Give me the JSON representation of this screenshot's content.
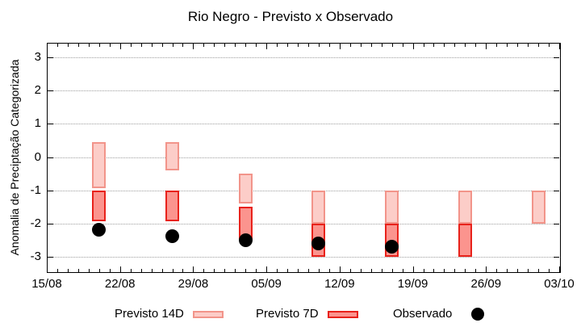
{
  "title": "Rio Negro - Previsto x Observado",
  "y_axis": {
    "label": "Anomalia de Preciptação Categorizada",
    "ticks": [
      3,
      2,
      1,
      0,
      -1,
      -2,
      -3
    ]
  },
  "x_axis": {
    "tick_labels": [
      "15/08",
      "22/08",
      "29/08",
      "05/09",
      "12/09",
      "19/09",
      "26/09",
      "03/10"
    ],
    "major_tick_every_days": 7,
    "minor_tick_every_days": 1,
    "total_days": 49
  },
  "legend": {
    "items": [
      {
        "label": "Previsto 14D",
        "swatch": "range-bar-light"
      },
      {
        "label": "Previsto 7D",
        "swatch": "range-bar-dark"
      },
      {
        "label": "Observado",
        "swatch": "black-dot"
      }
    ]
  },
  "colors": {
    "bar14_fill": "#fccdc8",
    "bar14_border": "#f2948a",
    "bar7_fill": "#fb948e",
    "bar7_border": "#e8221b",
    "observed": "#000000",
    "grid": "#9e9e9e",
    "frame": "#000000",
    "background": "#ffffff"
  },
  "chart_data": {
    "type": "bar",
    "subtype": "floating-range-bars-with-scatter",
    "title": "Rio Negro - Previsto x Observado",
    "xlabel": "",
    "ylabel": "Anomalia de Preciptação Categorizada",
    "ylim": [
      -3.45,
      3.45
    ],
    "x_range_labels": [
      "15/08",
      "03/10"
    ],
    "grid": "horizontal-dotted",
    "legend_position": "below",
    "categories": [
      "20/08",
      "27/08",
      "03/09",
      "10/09",
      "17/09",
      "24/09",
      "01/10"
    ],
    "category_day_offsets": [
      5,
      12,
      19,
      26,
      33,
      40,
      47
    ],
    "series": [
      {
        "name": "Previsto 14D",
        "style": "range-bar-light",
        "points": [
          {
            "date": "20/08",
            "day": 5,
            "low": -0.95,
            "high": 0.45
          },
          {
            "date": "27/08",
            "day": 12,
            "low": -0.4,
            "high": 0.45
          },
          {
            "date": "03/09",
            "day": 19,
            "low": -1.4,
            "high": -0.5
          },
          {
            "date": "10/09",
            "day": 26,
            "low": -2.0,
            "high": -1.0
          },
          {
            "date": "17/09",
            "day": 33,
            "low": -2.0,
            "high": -1.0
          },
          {
            "date": "24/09",
            "day": 40,
            "low": -2.0,
            "high": -1.0
          },
          {
            "date": "01/10",
            "day": 47,
            "low": -2.0,
            "high": -1.0
          }
        ]
      },
      {
        "name": "Previsto 7D",
        "style": "range-bar-dark",
        "points": [
          {
            "date": "20/08",
            "day": 5,
            "low": -1.95,
            "high": -1.0
          },
          {
            "date": "27/08",
            "day": 12,
            "low": -1.95,
            "high": -1.0
          },
          {
            "date": "03/09",
            "day": 19,
            "low": -2.5,
            "high": -1.5
          },
          {
            "date": "10/09",
            "day": 26,
            "low": -3.0,
            "high": -2.0
          },
          {
            "date": "17/09",
            "day": 33,
            "low": -3.0,
            "high": -2.0
          },
          {
            "date": "24/09",
            "day": 40,
            "low": -3.0,
            "high": -2.0
          }
        ]
      },
      {
        "name": "Observado",
        "style": "scatter-black-dot",
        "points": [
          {
            "date": "20/08",
            "day": 5,
            "value": -2.2
          },
          {
            "date": "27/08",
            "day": 12,
            "value": -2.4
          },
          {
            "date": "03/09",
            "day": 19,
            "value": -2.5
          },
          {
            "date": "10/09",
            "day": 26,
            "value": -2.6
          },
          {
            "date": "17/09",
            "day": 33,
            "value": -2.7
          }
        ]
      }
    ]
  }
}
